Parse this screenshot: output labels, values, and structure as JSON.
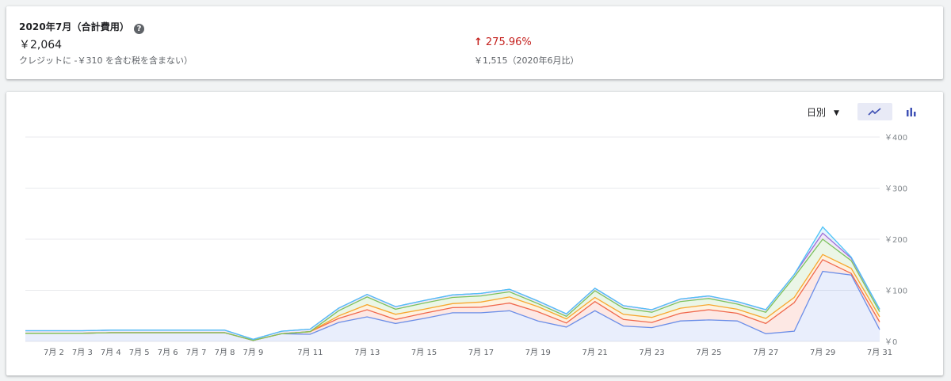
{
  "summary": {
    "title": "2020年7月（合計費用）",
    "amount": "￥2,064",
    "credit_note": "クレジットに -￥310 を含む税を含まない）",
    "change": "275.96%",
    "compare": "￥1,515（2020年6月比）"
  },
  "controls": {
    "period_label": "日別",
    "line_icon": "line-chart-icon",
    "bar_icon": "bar-chart-icon",
    "help_icon": "help-icon"
  },
  "colors": {
    "blue": "#6b8ee8",
    "red": "#f0684d",
    "orange": "#f7a72e",
    "green": "#7cc35c",
    "purple": "#9c6bd6",
    "cyan": "#4fc3f7",
    "change_red": "#c5221f",
    "accent": "#3f51b5"
  },
  "chart_data": {
    "type": "area",
    "x": [
      "7月 1",
      "7月 2",
      "7月 3",
      "7月 4",
      "7月 5",
      "7月 6",
      "7月 7",
      "7月 8",
      "7月 9",
      "7月 10",
      "7月 11",
      "7月 12",
      "7月 13",
      "7月 14",
      "7月 15",
      "7月 16",
      "7月 17",
      "7月 18",
      "7月 19",
      "7月 20",
      "7月 21",
      "7月 22",
      "7月 23",
      "7月 24",
      "7月 25",
      "7月 26",
      "7月 27",
      "7月 28",
      "7月 29",
      "7月 30",
      "7月 31"
    ],
    "xtick_labels": [
      "7月 2",
      "7月 3",
      "7月 4",
      "7月 5",
      "7月 6",
      "7月 7",
      "7月 8",
      "7月 9",
      "7月 11",
      "7月 13",
      "7月 15",
      "7月 17",
      "7月 19",
      "7月 21",
      "7月 23",
      "7月 25",
      "7月 27",
      "7月 29",
      "7月 31"
    ],
    "yticks": [
      "￥0",
      "￥100",
      "￥200",
      "￥300",
      "￥400"
    ],
    "ylim": [
      0,
      400
    ],
    "stacked": true,
    "series": [
      {
        "color": "blue",
        "values": [
          16,
          16,
          16,
          17,
          17,
          17,
          17,
          17,
          2,
          15,
          14,
          37,
          48,
          35,
          45,
          56,
          56,
          60,
          40,
          28,
          60,
          30,
          27,
          40,
          42,
          40,
          15,
          20,
          137,
          130,
          23
        ]
      },
      {
        "color": "red",
        "values": [
          0,
          0,
          0,
          0,
          0,
          0,
          0,
          0,
          0,
          0,
          5,
          8,
          14,
          8,
          10,
          10,
          11,
          15,
          18,
          8,
          18,
          13,
          10,
          15,
          20,
          15,
          20,
          56,
          23,
          3,
          15
        ]
      },
      {
        "color": "orange",
        "values": [
          0,
          0,
          0,
          0,
          0,
          0,
          0,
          0,
          0,
          0,
          0,
          5,
          10,
          10,
          8,
          8,
          10,
          12,
          10,
          8,
          8,
          10,
          10,
          10,
          10,
          8,
          10,
          10,
          10,
          10,
          10
        ]
      },
      {
        "color": "green",
        "values": [
          0,
          0,
          0,
          0,
          0,
          0,
          0,
          0,
          0,
          0,
          0,
          10,
          15,
          10,
          12,
          12,
          12,
          10,
          6,
          5,
          13,
          12,
          10,
          13,
          12,
          10,
          12,
          40,
          30,
          15,
          10
        ]
      },
      {
        "color": "purple",
        "values": [
          5,
          5,
          5,
          5,
          5,
          5,
          5,
          5,
          2,
          5,
          5,
          5,
          5,
          5,
          5,
          5,
          5,
          5,
          5,
          5,
          5,
          5,
          5,
          5,
          5,
          5,
          5,
          5,
          12,
          5,
          5
        ]
      },
      {
        "color": "cyan",
        "values": [
          0,
          0,
          0,
          0,
          0,
          0,
          0,
          0,
          0,
          0,
          0,
          0,
          0,
          0,
          0,
          0,
          0,
          0,
          0,
          0,
          0,
          0,
          0,
          0,
          0,
          0,
          0,
          0,
          12,
          2,
          0
        ]
      }
    ]
  }
}
